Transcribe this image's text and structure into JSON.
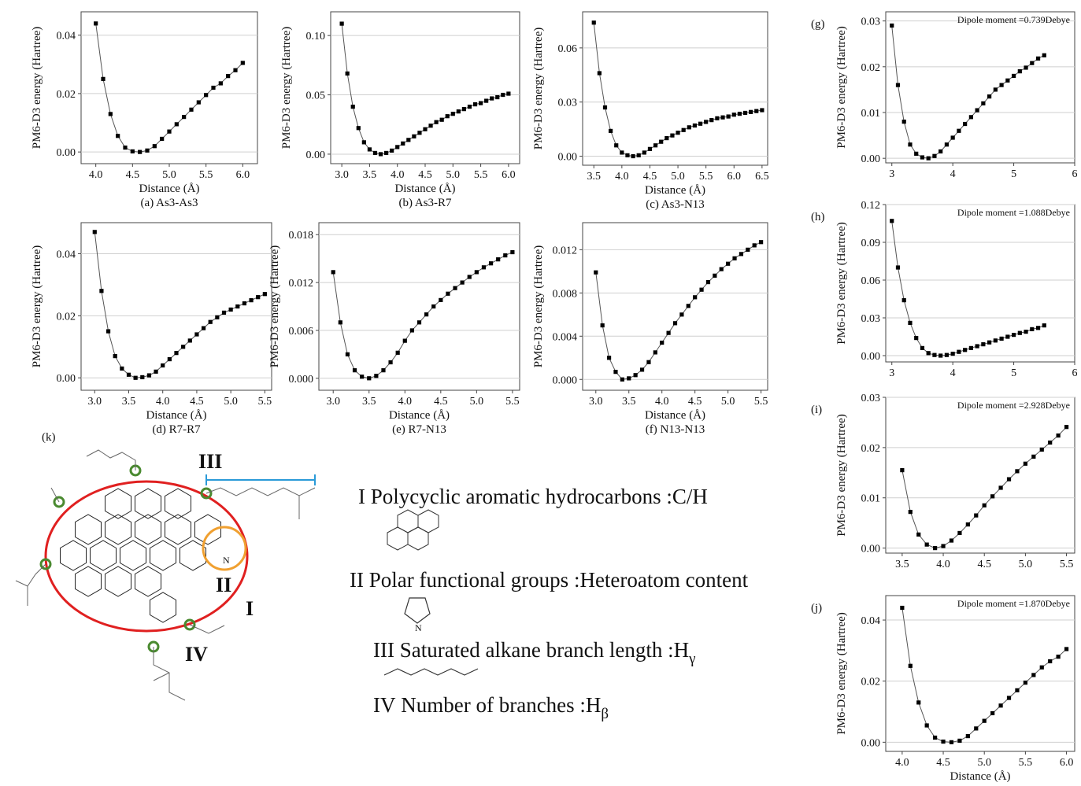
{
  "chart_data": [
    {
      "type": "line",
      "caption": "(a) As3-As3",
      "xlabel": "Distance (Å)",
      "ylabel": "PM6-D3 energy (Hartree)",
      "color": "#000000",
      "grid": true,
      "x": [
        4.0,
        4.1,
        4.2,
        4.3,
        4.4,
        4.5,
        4.6,
        4.7,
        4.8,
        4.9,
        5.0,
        5.1,
        5.2,
        5.3,
        5.4,
        5.5,
        5.6,
        5.7,
        5.8,
        5.9,
        6.0
      ],
      "values": [
        0.044,
        0.025,
        0.013,
        0.0055,
        0.0015,
        0.0002,
        0,
        0.0005,
        0.002,
        0.0045,
        0.007,
        0.0095,
        0.012,
        0.0145,
        0.017,
        0.0195,
        0.022,
        0.0235,
        0.026,
        0.028,
        0.0305
      ],
      "xlim": [
        3.8,
        6.2
      ],
      "xticks": [
        {
          "value": 4,
          "label": "4.0"
        },
        4.5,
        {
          "value": 5,
          "label": "5.0"
        },
        5.5,
        {
          "value": 6,
          "label": "6.0"
        }
      ],
      "ylim": [
        -0.004,
        0.048
      ],
      "yticks": [
        {
          "value": 0,
          "label": "0.00"
        },
        0.02,
        0.04
      ]
    },
    {
      "type": "line",
      "caption": "(b) As3-R7",
      "xlabel": "Distance (Å)",
      "ylabel": "PM6-D3 energy (Hartree)",
      "color": "#000000",
      "grid": true,
      "x": [
        3.0,
        3.1,
        3.2,
        3.3,
        3.4,
        3.5,
        3.6,
        3.7,
        3.8,
        3.9,
        4.0,
        4.1,
        4.2,
        4.3,
        4.4,
        4.5,
        4.6,
        4.7,
        4.8,
        4.9,
        5.0,
        5.1,
        5.2,
        5.3,
        5.4,
        5.5,
        5.6,
        5.7,
        5.8,
        5.9,
        6.0
      ],
      "values": [
        0.11,
        0.068,
        0.04,
        0.022,
        0.01,
        0.004,
        0.001,
        0,
        0.001,
        0.003,
        0.006,
        0.009,
        0.012,
        0.015,
        0.018,
        0.021,
        0.024,
        0.027,
        0.029,
        0.032,
        0.034,
        0.036,
        0.038,
        0.04,
        0.042,
        0.043,
        0.045,
        0.047,
        0.048,
        0.05,
        0.051
      ],
      "xlim": [
        2.8,
        6.2
      ],
      "xticks": [
        {
          "value": 3,
          "label": "3.0"
        },
        3.5,
        {
          "value": 4,
          "label": "4.0"
        },
        4.5,
        {
          "value": 5,
          "label": "5.0"
        },
        5.5,
        {
          "value": 6,
          "label": "6.0"
        }
      ],
      "ylim": [
        -0.008,
        0.12
      ],
      "yticks": [
        {
          "value": 0,
          "label": "0.00"
        },
        0.05,
        {
          "value": 0.1,
          "label": "0.10"
        }
      ]
    },
    {
      "type": "line",
      "caption": "(c) As3-N13",
      "xlabel": "Distance (Å)",
      "ylabel": "PM6-D3 energy (Hartree)",
      "color": "#000000",
      "grid": true,
      "x": [
        3.5,
        3.6,
        3.7,
        3.8,
        3.9,
        4.0,
        4.1,
        4.2,
        4.3,
        4.4,
        4.5,
        4.6,
        4.7,
        4.8,
        4.9,
        5.0,
        5.1,
        5.2,
        5.3,
        5.4,
        5.5,
        5.6,
        5.7,
        5.8,
        5.9,
        6.0,
        6.1,
        6.2,
        6.3,
        6.4,
        6.5
      ],
      "values": [
        0.074,
        0.046,
        0.027,
        0.014,
        0.006,
        0.002,
        0.0005,
        0,
        0.0005,
        0.002,
        0.004,
        0.006,
        0.008,
        0.01,
        0.0115,
        0.013,
        0.0145,
        0.016,
        0.017,
        0.018,
        0.019,
        0.02,
        0.021,
        0.0215,
        0.022,
        0.023,
        0.0235,
        0.024,
        0.0245,
        0.025,
        0.0255
      ],
      "xlim": [
        3.3,
        6.6
      ],
      "xticks": [
        3.5,
        {
          "value": 4,
          "label": "4.0"
        },
        4.5,
        {
          "value": 5,
          "label": "5.0"
        },
        5.5,
        {
          "value": 6,
          "label": "6.0"
        },
        6.5
      ],
      "ylim": [
        -0.005,
        0.08
      ],
      "yticks": [
        {
          "value": 0,
          "label": "0.00"
        },
        0.03,
        0.06
      ]
    },
    {
      "type": "line",
      "caption": "(d) R7-R7",
      "xlabel": "Distance (Å)",
      "ylabel": "PM6-D3 energy (Hartree)",
      "color": "#000000",
      "grid": true,
      "x": [
        3.0,
        3.1,
        3.2,
        3.3,
        3.4,
        3.5,
        3.6,
        3.7,
        3.8,
        3.9,
        4.0,
        4.1,
        4.2,
        4.3,
        4.4,
        4.5,
        4.6,
        4.7,
        4.8,
        4.9,
        5.0,
        5.1,
        5.2,
        5.3,
        5.4,
        5.5
      ],
      "values": [
        0.047,
        0.028,
        0.015,
        0.007,
        0.003,
        0.001,
        0,
        0.0002,
        0.0008,
        0.002,
        0.004,
        0.006,
        0.008,
        0.01,
        0.012,
        0.014,
        0.016,
        0.018,
        0.0195,
        0.021,
        0.022,
        0.023,
        0.024,
        0.025,
        0.026,
        0.027
      ],
      "xlim": [
        2.8,
        5.6
      ],
      "xticks": [
        {
          "value": 3,
          "label": "3.0"
        },
        3.5,
        {
          "value": 4,
          "label": "4.0"
        },
        4.5,
        {
          "value": 5,
          "label": "5.0"
        },
        5.5
      ],
      "ylim": [
        -0.004,
        0.05
      ],
      "yticks": [
        {
          "value": 0,
          "label": "0.00"
        },
        0.02,
        0.04
      ]
    },
    {
      "type": "line",
      "caption": "(e) R7-N13",
      "xlabel": "Distance (Å)",
      "ylabel": "PM6-D3 energy (Hartree)",
      "color": "#000000",
      "grid": true,
      "x": [
        3.0,
        3.1,
        3.2,
        3.3,
        3.4,
        3.5,
        3.6,
        3.7,
        3.8,
        3.9,
        4.0,
        4.1,
        4.2,
        4.3,
        4.4,
        4.5,
        4.6,
        4.7,
        4.8,
        4.9,
        5.0,
        5.1,
        5.2,
        5.3,
        5.4,
        5.5
      ],
      "values": [
        0.0133,
        0.007,
        0.003,
        0.001,
        0.0002,
        0,
        0.0003,
        0.001,
        0.002,
        0.0032,
        0.0047,
        0.006,
        0.007,
        0.008,
        0.009,
        0.0098,
        0.0106,
        0.0113,
        0.012,
        0.0127,
        0.0133,
        0.0139,
        0.0144,
        0.0149,
        0.0154,
        0.0158
      ],
      "xlim": [
        2.8,
        5.6
      ],
      "xticks": [
        {
          "value": 3,
          "label": "3.0"
        },
        3.5,
        {
          "value": 4,
          "label": "4.0"
        },
        4.5,
        {
          "value": 5,
          "label": "5.0"
        },
        5.5
      ],
      "ylim": [
        -0.0015,
        0.0195
      ],
      "yticks": [
        {
          "value": 0,
          "label": "0.000"
        },
        0.006,
        0.012,
        0.018
      ]
    },
    {
      "type": "line",
      "caption": "(f) N13-N13",
      "xlabel": "Distance (Å)",
      "ylabel": "PM6-D3 energy (Hartree)",
      "color": "#000000",
      "grid": true,
      "x": [
        3.0,
        3.1,
        3.2,
        3.3,
        3.4,
        3.5,
        3.6,
        3.7,
        3.8,
        3.9,
        4.0,
        4.1,
        4.2,
        4.3,
        4.4,
        4.5,
        4.6,
        4.7,
        4.8,
        4.9,
        5.0,
        5.1,
        5.2,
        5.3,
        5.4,
        5.5
      ],
      "values": [
        0.0099,
        0.005,
        0.002,
        0.0007,
        0,
        0.0001,
        0.0004,
        0.0009,
        0.0016,
        0.0025,
        0.0034,
        0.0043,
        0.0052,
        0.006,
        0.0068,
        0.0076,
        0.0083,
        0.009,
        0.0096,
        0.0102,
        0.0107,
        0.0112,
        0.0116,
        0.012,
        0.0124,
        0.0127
      ],
      "xlim": [
        2.8,
        5.6
      ],
      "xticks": [
        {
          "value": 3,
          "label": "3.0"
        },
        3.5,
        {
          "value": 4,
          "label": "4.0"
        },
        4.5,
        {
          "value": 5,
          "label": "5.0"
        },
        5.5
      ],
      "ylim": [
        -0.001,
        0.0145
      ],
      "yticks": [
        {
          "value": 0,
          "label": "0.000"
        },
        0.004,
        0.008,
        0.012
      ]
    },
    {
      "type": "line",
      "panel_label": "(g)",
      "annotation": "Dipole moment =0.739Debye",
      "ylabel": "PM6-D3 energy (Hartree)",
      "color": "#000000",
      "grid": true,
      "x": [
        3.0,
        3.1,
        3.2,
        3.3,
        3.4,
        3.5,
        3.6,
        3.7,
        3.8,
        3.9,
        4.0,
        4.1,
        4.2,
        4.3,
        4.4,
        4.5,
        4.6,
        4.7,
        4.8,
        4.9,
        5.0,
        5.1,
        5.2,
        5.3,
        5.4,
        5.5
      ],
      "values": [
        0.029,
        0.016,
        0.008,
        0.003,
        0.001,
        0.0002,
        0,
        0.0005,
        0.0015,
        0.003,
        0.0045,
        0.006,
        0.0075,
        0.009,
        0.0105,
        0.012,
        0.0135,
        0.015,
        0.016,
        0.017,
        0.018,
        0.019,
        0.0198,
        0.0208,
        0.0218,
        0.0225
      ],
      "xlim": [
        2.9,
        6
      ],
      "xticks": [
        3,
        4,
        5,
        6
      ],
      "ylim": [
        -0.001,
        0.032
      ],
      "yticks": [
        {
          "value": 0,
          "label": "0.00"
        },
        0.01,
        0.02,
        0.03
      ]
    },
    {
      "type": "line",
      "panel_label": "(h)",
      "annotation": "Dipole moment =1.088Debye",
      "ylabel": "PM6-D3 energy (Hartree)",
      "color": "#000000",
      "grid": true,
      "x": [
        3.0,
        3.1,
        3.2,
        3.3,
        3.4,
        3.5,
        3.6,
        3.7,
        3.8,
        3.9,
        4.0,
        4.1,
        4.2,
        4.3,
        4.4,
        4.5,
        4.6,
        4.7,
        4.8,
        4.9,
        5.0,
        5.1,
        5.2,
        5.3,
        5.4,
        5.5
      ],
      "values": [
        0.107,
        0.07,
        0.044,
        0.026,
        0.014,
        0.006,
        0.002,
        0.0005,
        0,
        0.0005,
        0.0015,
        0.003,
        0.0045,
        0.006,
        0.0075,
        0.009,
        0.0105,
        0.012,
        0.0135,
        0.015,
        0.0165,
        0.018,
        0.019,
        0.021,
        0.022,
        0.024
      ],
      "xlim": [
        2.9,
        6
      ],
      "xticks": [
        3,
        4,
        5,
        6
      ],
      "ylim": [
        -0.005,
        0.12
      ],
      "yticks": [
        {
          "value": 0,
          "label": "0.00"
        },
        0.03,
        0.06,
        0.09,
        0.12
      ]
    },
    {
      "type": "line",
      "panel_label": "(i)",
      "annotation": "Dipole moment =2.928Debye",
      "ylabel": "PM6-D3 energy (Hartree)",
      "color": "#000000",
      "grid": true,
      "x": [
        3.5,
        3.6,
        3.7,
        3.8,
        3.9,
        4.0,
        4.1,
        4.2,
        4.3,
        4.4,
        4.5,
        4.6,
        4.7,
        4.8,
        4.9,
        5.0,
        5.1,
        5.2,
        5.3,
        5.4,
        5.5
      ],
      "values": [
        0.0155,
        0.0072,
        0.0027,
        0.0007,
        0,
        0.0004,
        0.0015,
        0.003,
        0.0047,
        0.0065,
        0.0085,
        0.0103,
        0.012,
        0.0137,
        0.0153,
        0.0168,
        0.0182,
        0.0196,
        0.021,
        0.0224,
        0.0241
      ],
      "xlim": [
        3.3,
        5.6
      ],
      "xticks": [
        3.5,
        {
          "value": 4,
          "label": "4.0"
        },
        4.5,
        {
          "value": 5,
          "label": "5.0"
        },
        5.5
      ],
      "ylim": [
        -0.001,
        0.03
      ],
      "yticks": [
        {
          "value": 0,
          "label": "0.00"
        },
        0.01,
        0.02,
        0.03
      ]
    },
    {
      "type": "line",
      "panel_label": "(j)",
      "annotation": "Dipole moment =1.870Debye",
      "xlabel": "Distance (Å)",
      "ylabel": "PM6-D3 energy (Hartree)",
      "color": "#000000",
      "grid": true,
      "x": [
        4.0,
        4.1,
        4.2,
        4.3,
        4.4,
        4.5,
        4.6,
        4.7,
        4.8,
        4.9,
        5.0,
        5.1,
        5.2,
        5.3,
        5.4,
        5.5,
        5.6,
        5.7,
        5.8,
        5.9,
        6.0
      ],
      "values": [
        0.044,
        0.025,
        0.013,
        0.0055,
        0.0015,
        0.0002,
        0,
        0.0005,
        0.002,
        0.0045,
        0.007,
        0.0095,
        0.012,
        0.0145,
        0.017,
        0.0195,
        0.022,
        0.0245,
        0.0265,
        0.028,
        0.0305
      ],
      "xlim": [
        3.8,
        6.1
      ],
      "xticks": [
        {
          "value": 4,
          "label": "4.0"
        },
        4.5,
        {
          "value": 5,
          "label": "5.0"
        },
        5.5,
        {
          "value": 6,
          "label": "6.0"
        }
      ],
      "ylim": [
        -0.003,
        0.048
      ],
      "yticks": [
        {
          "value": 0,
          "label": "0.00"
        },
        0.02,
        0.04
      ]
    }
  ],
  "diagram": {
    "panel_label": "(k)",
    "marks": [
      "I",
      "II",
      "III",
      "IV"
    ],
    "items": [
      {
        "numeral": "I",
        "text": "Polycyclic aromatic hydrocarbons :C/H"
      },
      {
        "numeral": "II",
        "text": "Polar functional groups :Heteroatom content"
      },
      {
        "numeral": "III",
        "text": "Saturated alkane branch length :H",
        "sub": "γ"
      },
      {
        "numeral": "IV",
        "text": "Number of branches :H",
        "sub": "β"
      }
    ],
    "atom": "N"
  }
}
